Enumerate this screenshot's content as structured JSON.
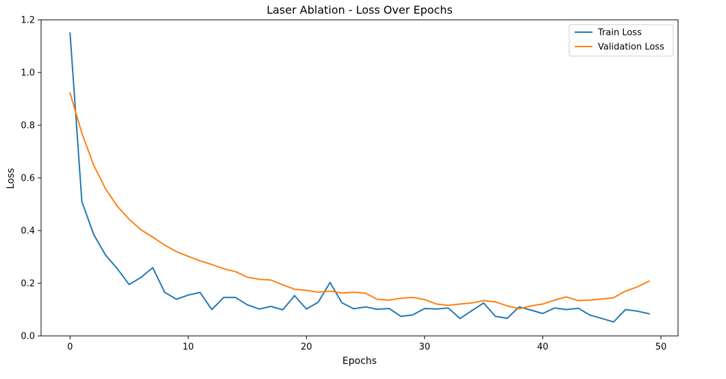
{
  "chart_data": {
    "type": "line",
    "title": "Laser Ablation - Loss Over Epochs",
    "xlabel": "Epochs",
    "ylabel": "Loss",
    "xlim": [
      -2.45,
      51.45
    ],
    "ylim": [
      0.0,
      1.2
    ],
    "xticks": [
      0,
      10,
      20,
      30,
      40,
      50
    ],
    "yticks": [
      0.0,
      0.2,
      0.4,
      0.6,
      0.8,
      1.0,
      1.2
    ],
    "xtick_labels": [
      "0",
      "10",
      "20",
      "30",
      "40",
      "50"
    ],
    "ytick_labels": [
      "0.0",
      "0.2",
      "0.4",
      "0.6",
      "0.8",
      "1.0",
      "1.2"
    ],
    "grid": false,
    "legend_position": "top-right",
    "x": [
      0,
      1,
      2,
      3,
      4,
      5,
      6,
      7,
      8,
      9,
      10,
      11,
      12,
      13,
      14,
      15,
      16,
      17,
      18,
      19,
      20,
      21,
      22,
      23,
      24,
      25,
      26,
      27,
      28,
      29,
      30,
      31,
      32,
      33,
      34,
      35,
      36,
      37,
      38,
      39,
      40,
      41,
      42,
      43,
      44,
      45,
      46,
      47,
      48,
      49
    ],
    "series": [
      {
        "name": "Train Loss",
        "color": "#1f77b4",
        "values": [
          1.15,
          0.51,
          0.385,
          0.307,
          0.255,
          0.195,
          0.222,
          0.259,
          0.166,
          0.139,
          0.155,
          0.165,
          0.1,
          0.146,
          0.146,
          0.118,
          0.102,
          0.112,
          0.099,
          0.153,
          0.102,
          0.128,
          0.203,
          0.126,
          0.103,
          0.11,
          0.101,
          0.104,
          0.074,
          0.08,
          0.104,
          0.102,
          0.106,
          0.066,
          0.096,
          0.125,
          0.074,
          0.067,
          0.11,
          0.098,
          0.085,
          0.106,
          0.1,
          0.105,
          0.079,
          0.066,
          0.053,
          0.1,
          0.094,
          0.084
        ]
      },
      {
        "name": "Validation Loss",
        "color": "#ff7f0e",
        "values": [
          0.922,
          0.77,
          0.648,
          0.559,
          0.492,
          0.443,
          0.403,
          0.375,
          0.345,
          0.32,
          0.302,
          0.285,
          0.271,
          0.255,
          0.244,
          0.223,
          0.215,
          0.212,
          0.194,
          0.177,
          0.173,
          0.166,
          0.17,
          0.163,
          0.166,
          0.162,
          0.139,
          0.136,
          0.143,
          0.146,
          0.138,
          0.121,
          0.116,
          0.121,
          0.125,
          0.134,
          0.129,
          0.114,
          0.103,
          0.114,
          0.121,
          0.136,
          0.148,
          0.134,
          0.136,
          0.14,
          0.145,
          0.17,
          0.186,
          0.208
        ]
      }
    ]
  }
}
